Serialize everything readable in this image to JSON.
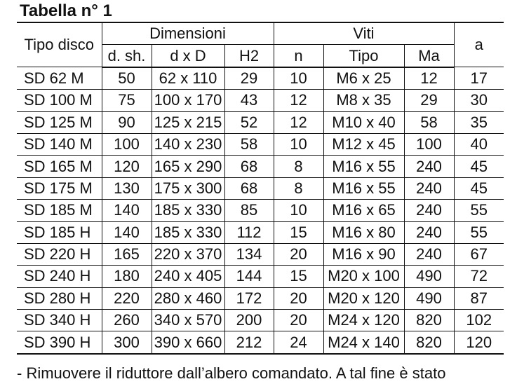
{
  "title": "Tabella n° 1",
  "headers": {
    "tipo_disco": "Tipo disco",
    "dimensioni": "Dimensioni",
    "viti": "Viti",
    "a": "a",
    "d_sh": "d. sh.",
    "d_x_D": "d x D",
    "H2": "H2",
    "n": "n",
    "tipo": "Tipo",
    "Ma": "Ma"
  },
  "rows": [
    [
      "SD 62 M",
      "50",
      "62 x 110",
      "29",
      "10",
      "M6 x 25",
      "12",
      "17"
    ],
    [
      "SD 100 M",
      "75",
      "100 x 170",
      "43",
      "12",
      "M8 x 35",
      "29",
      "30"
    ],
    [
      "SD 125 M",
      "90",
      "125 x 215",
      "52",
      "12",
      "M10 x 40",
      "58",
      "35"
    ],
    [
      "SD 140 M",
      "100",
      "140 x 230",
      "58",
      "10",
      "M12 x 45",
      "100",
      "40"
    ],
    [
      "SD 165 M",
      "120",
      "165 x 290",
      "68",
      "8",
      "M16 x 55",
      "240",
      "45"
    ],
    [
      "SD 175 M",
      "130",
      "175 x 300",
      "68",
      "8",
      "M16 x 55",
      "240",
      "45"
    ],
    [
      "SD 185 M",
      "140",
      "185 x 330",
      "85",
      "10",
      "M16 x 65",
      "240",
      "55"
    ],
    [
      "SD 185 H",
      "140",
      "185 x 330",
      "112",
      "15",
      "M16 x 80",
      "240",
      "55"
    ],
    [
      "SD 220 H",
      "165",
      "220 x 370",
      "134",
      "20",
      "M16 x 90",
      "240",
      "67"
    ],
    [
      "SD 240 H",
      "180",
      "240 x 405",
      "144",
      "15",
      "M20 x 100",
      "490",
      "72"
    ],
    [
      "SD 280 H",
      "220",
      "280 x 460",
      "172",
      "20",
      "M20 x 120",
      "490",
      "87"
    ],
    [
      "SD 340 H",
      "260",
      "340 x 570",
      "200",
      "20",
      "M24 x 120",
      "820",
      "102"
    ],
    [
      "SD 390 H",
      "300",
      "390 x 660",
      "212",
      "24",
      "M24 x 140",
      "820",
      "120"
    ]
  ],
  "bottom_text": "- Rimuovere il riduttore dall’albero comandato. A tal fine è stato"
}
